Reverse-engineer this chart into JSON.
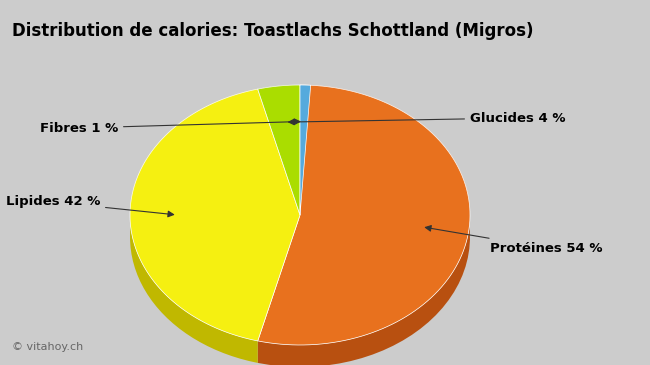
{
  "title": "Distribution de calories: Toastlachs Schottland (Migros)",
  "sizes": [
    54,
    42,
    4,
    1
  ],
  "colors": [
    "#E8711E",
    "#F5F011",
    "#AADD00",
    "#55AADD"
  ],
  "dark_colors": [
    "#B85010",
    "#C0B800",
    "#789900",
    "#3377AA"
  ],
  "background_color": "#CCCCCC",
  "watermark": "© vitahoy.ch",
  "startangle": 90,
  "annotation_texts": [
    "Protéines 54 %",
    "Lipides 42 %",
    "Glucides 4 %",
    "Fibres 1 %"
  ]
}
